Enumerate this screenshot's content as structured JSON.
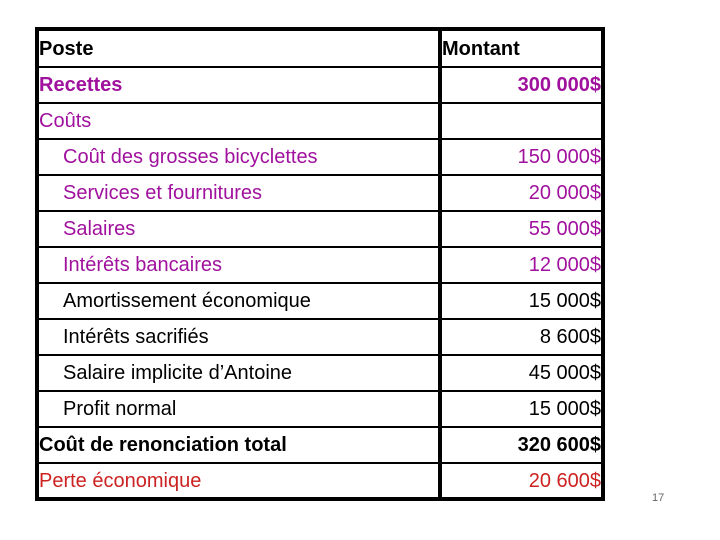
{
  "colors": {
    "purple": "#A0119D",
    "red": "#CC2222",
    "black": "#000000"
  },
  "page_number": "17",
  "table": {
    "columns": [
      {
        "label": "Poste"
      },
      {
        "label": "Montant"
      }
    ],
    "rows": [
      {
        "label": "Recettes",
        "amount": "300 000$",
        "color": "purple",
        "bold": true,
        "indent": false
      },
      {
        "label": "Coûts",
        "amount": "",
        "color": "purple",
        "bold": false,
        "indent": false
      },
      {
        "label": "Coût des grosses bicyclettes",
        "amount": "150 000$",
        "color": "purple",
        "bold": false,
        "indent": true
      },
      {
        "label": "Services et fournitures",
        "amount": "20 000$",
        "color": "purple",
        "bold": false,
        "indent": true
      },
      {
        "label": "Salaires",
        "amount": "55 000$",
        "color": "purple",
        "bold": false,
        "indent": true
      },
      {
        "label": "Intérêts bancaires",
        "amount": "12 000$",
        "color": "purple",
        "bold": false,
        "indent": true
      },
      {
        "label": "Amortissement économique",
        "amount": "15 000$",
        "color": "black",
        "bold": false,
        "indent": true
      },
      {
        "label": "Intérêts sacrifiés",
        "amount": "8 600$",
        "color": "black",
        "bold": false,
        "indent": true
      },
      {
        "label": "Salaire implicite d’Antoine",
        "amount": "45 000$",
        "color": "black",
        "bold": false,
        "indent": true
      },
      {
        "label": "Profit normal",
        "amount": "15 000$",
        "color": "black",
        "bold": false,
        "indent": true
      },
      {
        "label": "Coût de renonciation total",
        "amount": "320 600$",
        "color": "black",
        "bold": true,
        "indent": false
      },
      {
        "label": "Perte économique",
        "amount": "20 600$",
        "color": "red",
        "bold": false,
        "indent": false
      }
    ]
  }
}
